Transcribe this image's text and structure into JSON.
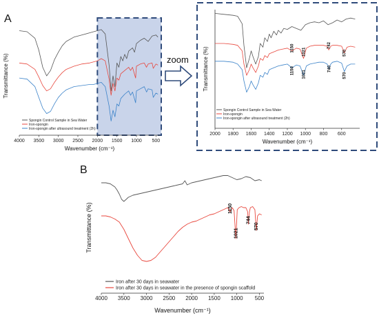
{
  "panel_a_label": "A",
  "panel_b_label": "B",
  "zoom_label": "zoom",
  "colors": {
    "black": "#555555",
    "red": "#e8463c",
    "blue": "#3a82c9",
    "box": "#2e4a7a",
    "highlight": "#c9d4ea"
  },
  "chart_data": [
    {
      "id": "a-full",
      "type": "line",
      "xlabel": "Wavenumber (cm⁻¹)",
      "ylabel": "Transmittance (%)",
      "xlim": [
        4000,
        400
      ],
      "xticks": [
        "4000",
        "3500",
        "3000",
        "2500",
        "2000",
        "1500",
        "1000",
        "500"
      ],
      "highlight_range": [
        2000,
        400
      ],
      "legend": {
        "position": "bottom-left",
        "entries": [
          "Spongin Control Sample in Sea Water",
          "Iron-spongin",
          "Iron-spongin after ultrasound treatment (2h)"
        ]
      },
      "series": [
        {
          "name": "Spongin Control Sample in Sea Water",
          "color": "black",
          "x": [
            4000,
            3800,
            3600,
            3500,
            3400,
            3300,
            3200,
            3100,
            3000,
            2900,
            2800,
            2600,
            2400,
            2200,
            2100,
            2000,
            1900,
            1800,
            1700,
            1650,
            1600,
            1550,
            1500,
            1450,
            1400,
            1350,
            1300,
            1250,
            1200,
            1100,
            1050,
            1000,
            900,
            800,
            700,
            600,
            500,
            450
          ],
          "y": [
            0.92,
            0.91,
            0.85,
            0.74,
            0.58,
            0.5,
            0.55,
            0.65,
            0.72,
            0.78,
            0.82,
            0.86,
            0.88,
            0.9,
            0.91,
            0.92,
            0.93,
            0.89,
            0.6,
            0.36,
            0.5,
            0.4,
            0.62,
            0.58,
            0.68,
            0.64,
            0.7,
            0.66,
            0.73,
            0.76,
            0.72,
            0.8,
            0.83,
            0.85,
            0.82,
            0.87,
            0.88,
            0.86
          ]
        },
        {
          "name": "Iron-spongin",
          "color": "red",
          "x": [
            4000,
            3800,
            3600,
            3500,
            3400,
            3300,
            3200,
            3100,
            3000,
            2900,
            2800,
            2600,
            2400,
            2200,
            2100,
            2000,
            1900,
            1800,
            1700,
            1650,
            1600,
            1550,
            1500,
            1450,
            1400,
            1300,
            1200,
            1150,
            1100,
            1021,
            1000,
            900,
            800,
            742,
            700,
            600,
            570,
            500,
            450
          ],
          "y": [
            0.62,
            0.61,
            0.56,
            0.49,
            0.41,
            0.36,
            0.38,
            0.44,
            0.49,
            0.53,
            0.56,
            0.59,
            0.61,
            0.62,
            0.63,
            0.64,
            0.66,
            0.64,
            0.47,
            0.32,
            0.43,
            0.36,
            0.48,
            0.46,
            0.52,
            0.55,
            0.58,
            0.55,
            0.58,
            0.48,
            0.59,
            0.61,
            0.62,
            0.58,
            0.61,
            0.62,
            0.57,
            0.61,
            0.6
          ]
        },
        {
          "name": "Iron-spongin after ultrasound treatment (2h)",
          "color": "blue",
          "x": [
            4000,
            3800,
            3600,
            3500,
            3400,
            3300,
            3200,
            3100,
            3000,
            2900,
            2800,
            2600,
            2400,
            2200,
            2100,
            2000,
            1900,
            1800,
            1700,
            1650,
            1600,
            1550,
            1500,
            1450,
            1400,
            1300,
            1200,
            1150,
            1100,
            1021,
            1000,
            900,
            800,
            740,
            700,
            600,
            570,
            500,
            450
          ],
          "y": [
            0.48,
            0.47,
            0.4,
            0.3,
            0.2,
            0.15,
            0.17,
            0.24,
            0.3,
            0.34,
            0.37,
            0.4,
            0.41,
            0.42,
            0.42,
            0.43,
            0.44,
            0.4,
            0.22,
            0.08,
            0.18,
            0.12,
            0.24,
            0.22,
            0.29,
            0.33,
            0.36,
            0.32,
            0.35,
            0.25,
            0.36,
            0.38,
            0.4,
            0.35,
            0.38,
            0.37,
            0.3,
            0.34,
            0.33
          ]
        }
      ]
    },
    {
      "id": "a-zoom",
      "type": "line",
      "xlabel": "Wavenumber (cm⁻¹)",
      "ylabel": "Transmittance (%)",
      "xlim": [
        2000,
        400
      ],
      "xticks": [
        "2000",
        "1800",
        "1600",
        "1400",
        "1200",
        "1000",
        "800",
        "600"
      ],
      "annotations": [
        {
          "text": "1150",
          "x": 1150,
          "y": 0.54
        },
        {
          "text": "1021",
          "x": 1021,
          "y": 0.5
        },
        {
          "text": "742",
          "x": 742,
          "y": 0.58
        },
        {
          "text": "570",
          "x": 570,
          "y": 0.5
        },
        {
          "text": "1150",
          "x": 1150,
          "y": 0.3
        },
        {
          "text": "1021",
          "x": 1021,
          "y": 0.26
        },
        {
          "text": "740",
          "x": 740,
          "y": 0.33
        },
        {
          "text": "570",
          "x": 570,
          "y": 0.26
        }
      ],
      "legend": {
        "position": "bottom-left",
        "entries": [
          "Spongin Control Sample in Sea Water",
          "Iron-spongin",
          "Iron-spongin after ultrasound treatment (2h)"
        ]
      },
      "series": [
        {
          "name": "Spongin Control Sample in Sea Water",
          "color": "black",
          "x": [
            2000,
            1900,
            1800,
            1750,
            1700,
            1680,
            1650,
            1620,
            1600,
            1580,
            1550,
            1520,
            1500,
            1470,
            1450,
            1420,
            1400,
            1380,
            1350,
            1320,
            1300,
            1270,
            1240,
            1200,
            1150,
            1100,
            1050,
            1000,
            950,
            900,
            850,
            800,
            750,
            700,
            650,
            600,
            550,
            500,
            450
          ],
          "y": [
            0.96,
            0.95,
            0.94,
            0.93,
            0.85,
            0.62,
            0.38,
            0.48,
            0.56,
            0.5,
            0.42,
            0.5,
            0.64,
            0.6,
            0.7,
            0.66,
            0.74,
            0.7,
            0.77,
            0.73,
            0.78,
            0.75,
            0.8,
            0.79,
            0.82,
            0.8,
            0.78,
            0.84,
            0.86,
            0.87,
            0.86,
            0.88,
            0.84,
            0.86,
            0.89,
            0.87,
            0.9,
            0.91,
            0.9
          ]
        },
        {
          "name": "Iron-spongin",
          "color": "red",
          "x": [
            2000,
            1900,
            1800,
            1750,
            1700,
            1680,
            1650,
            1620,
            1600,
            1580,
            1550,
            1520,
            1500,
            1470,
            1450,
            1420,
            1400,
            1350,
            1300,
            1250,
            1200,
            1150,
            1100,
            1060,
            1021,
            990,
            950,
            900,
            850,
            800,
            760,
            742,
            720,
            700,
            650,
            600,
            570,
            540,
            500,
            450
          ],
          "y": [
            0.64,
            0.64,
            0.63,
            0.62,
            0.56,
            0.42,
            0.3,
            0.36,
            0.42,
            0.38,
            0.33,
            0.4,
            0.48,
            0.46,
            0.51,
            0.49,
            0.53,
            0.55,
            0.57,
            0.58,
            0.59,
            0.56,
            0.59,
            0.58,
            0.48,
            0.59,
            0.61,
            0.62,
            0.62,
            0.62,
            0.61,
            0.57,
            0.61,
            0.62,
            0.62,
            0.61,
            0.54,
            0.6,
            0.61,
            0.6
          ]
        },
        {
          "name": "Iron-spongin after ultrasound treatment (2h)",
          "color": "blue",
          "x": [
            2000,
            1900,
            1800,
            1750,
            1700,
            1680,
            1650,
            1620,
            1600,
            1580,
            1550,
            1520,
            1500,
            1470,
            1450,
            1420,
            1400,
            1350,
            1300,
            1250,
            1200,
            1150,
            1100,
            1060,
            1021,
            990,
            950,
            900,
            850,
            800,
            760,
            740,
            720,
            700,
            650,
            600,
            570,
            540,
            500,
            450
          ],
          "y": [
            0.45,
            0.45,
            0.44,
            0.42,
            0.36,
            0.24,
            0.12,
            0.18,
            0.24,
            0.2,
            0.15,
            0.22,
            0.3,
            0.28,
            0.33,
            0.31,
            0.36,
            0.38,
            0.4,
            0.41,
            0.42,
            0.38,
            0.41,
            0.4,
            0.3,
            0.4,
            0.42,
            0.43,
            0.44,
            0.44,
            0.42,
            0.37,
            0.42,
            0.44,
            0.45,
            0.43,
            0.34,
            0.4,
            0.42,
            0.42
          ]
        }
      ]
    },
    {
      "id": "b",
      "type": "line",
      "xlabel": "Wavenumber (cm⁻¹)",
      "ylabel": "Transmittance (%)",
      "xlim": [
        4000,
        400
      ],
      "xticks": [
        "4000",
        "3500",
        "3000",
        "2500",
        "2000",
        "1500",
        "1000",
        "500"
      ],
      "annotations": [
        {
          "text": "1150",
          "x": 1150,
          "y": 0.6
        },
        {
          "text": "1021",
          "x": 1021,
          "y": 0.36
        },
        {
          "text": "744",
          "x": 744,
          "y": 0.5
        },
        {
          "text": "570",
          "x": 570,
          "y": 0.44
        }
      ],
      "legend": {
        "position": "bottom-left",
        "entries": [
          "Iron after 30 days in seawater",
          "Iron after 30 days in seawater in the presence of spongin scaffold"
        ]
      },
      "series": [
        {
          "name": "Iron after 30 days in seawater",
          "color": "black",
          "x": [
            4000,
            3900,
            3800,
            3700,
            3650,
            3600,
            3550,
            3500,
            3450,
            3400,
            3300,
            3200,
            3100,
            3000,
            2900,
            2800,
            2600,
            2400,
            2200,
            2150,
            2100,
            2000,
            1900,
            1800,
            1700,
            1600,
            1500,
            1400,
            1300,
            1200,
            1100,
            1000,
            900,
            800,
            700,
            600,
            500,
            450
          ],
          "y": [
            0.9,
            0.9,
            0.89,
            0.86,
            0.83,
            0.79,
            0.74,
            0.72,
            0.74,
            0.76,
            0.78,
            0.79,
            0.8,
            0.81,
            0.82,
            0.83,
            0.85,
            0.87,
            0.89,
            0.92,
            0.88,
            0.9,
            0.91,
            0.92,
            0.93,
            0.94,
            0.95,
            0.96,
            0.97,
            0.97,
            0.95,
            0.93,
            0.94,
            0.96,
            0.95,
            0.92,
            0.93,
            0.92
          ]
        },
        {
          "name": "Iron after 30 days in seawater in the presence of spongin scaffold",
          "color": "red",
          "x": [
            4000,
            3900,
            3800,
            3700,
            3600,
            3500,
            3400,
            3300,
            3200,
            3100,
            3000,
            2900,
            2800,
            2700,
            2600,
            2500,
            2400,
            2300,
            2200,
            2100,
            2000,
            1900,
            1800,
            1700,
            1600,
            1500,
            1400,
            1300,
            1200,
            1150,
            1100,
            1060,
            1021,
            990,
            950,
            900,
            850,
            800,
            760,
            744,
            720,
            700,
            650,
            600,
            570,
            540,
            500,
            450
          ],
          "y": [
            0.58,
            0.58,
            0.57,
            0.55,
            0.52,
            0.45,
            0.36,
            0.27,
            0.2,
            0.15,
            0.14,
            0.15,
            0.18,
            0.23,
            0.28,
            0.33,
            0.38,
            0.43,
            0.47,
            0.5,
            0.52,
            0.53,
            0.55,
            0.57,
            0.59,
            0.6,
            0.62,
            0.64,
            0.66,
            0.62,
            0.66,
            0.63,
            0.36,
            0.64,
            0.66,
            0.67,
            0.66,
            0.66,
            0.62,
            0.5,
            0.62,
            0.66,
            0.67,
            0.64,
            0.44,
            0.58,
            0.6,
            0.59
          ]
        }
      ]
    }
  ]
}
